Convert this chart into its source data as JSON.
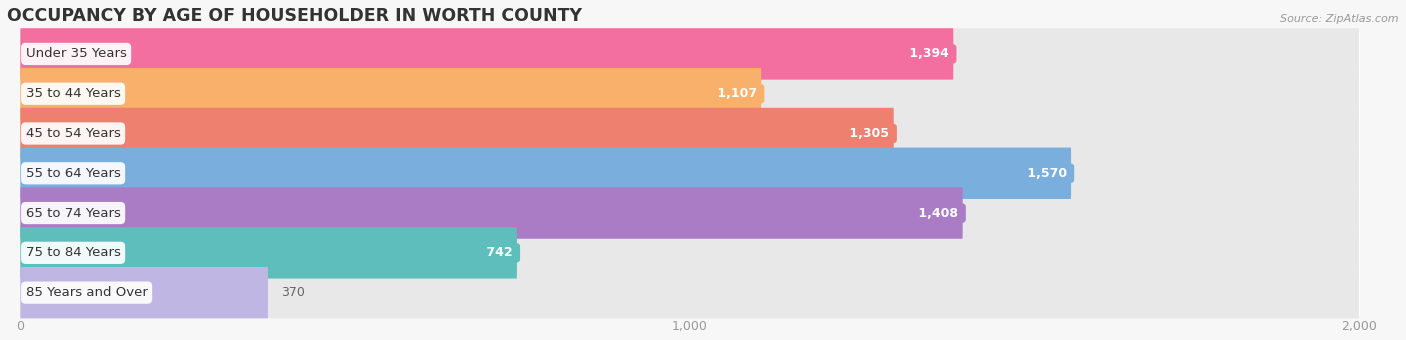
{
  "title": "OCCUPANCY BY AGE OF HOUSEHOLDER IN WORTH COUNTY",
  "source": "Source: ZipAtlas.com",
  "categories": [
    "Under 35 Years",
    "35 to 44 Years",
    "45 to 54 Years",
    "55 to 64 Years",
    "65 to 74 Years",
    "75 to 84 Years",
    "85 Years and Over"
  ],
  "values": [
    1394,
    1107,
    1305,
    1570,
    1408,
    742,
    370
  ],
  "bar_colors": [
    "#F26FA0",
    "#F8B06A",
    "#EE8070",
    "#7AAEDD",
    "#A97CC5",
    "#5DBEBC",
    "#C0B6E3"
  ],
  "bar_bg_color": "#E8E8E8",
  "xlim_max": 2000,
  "xticks": [
    0,
    1000,
    2000
  ],
  "background_color": "#F7F7F7",
  "title_fontsize": 12.5,
  "label_fontsize": 9.5,
  "value_fontsize": 9
}
